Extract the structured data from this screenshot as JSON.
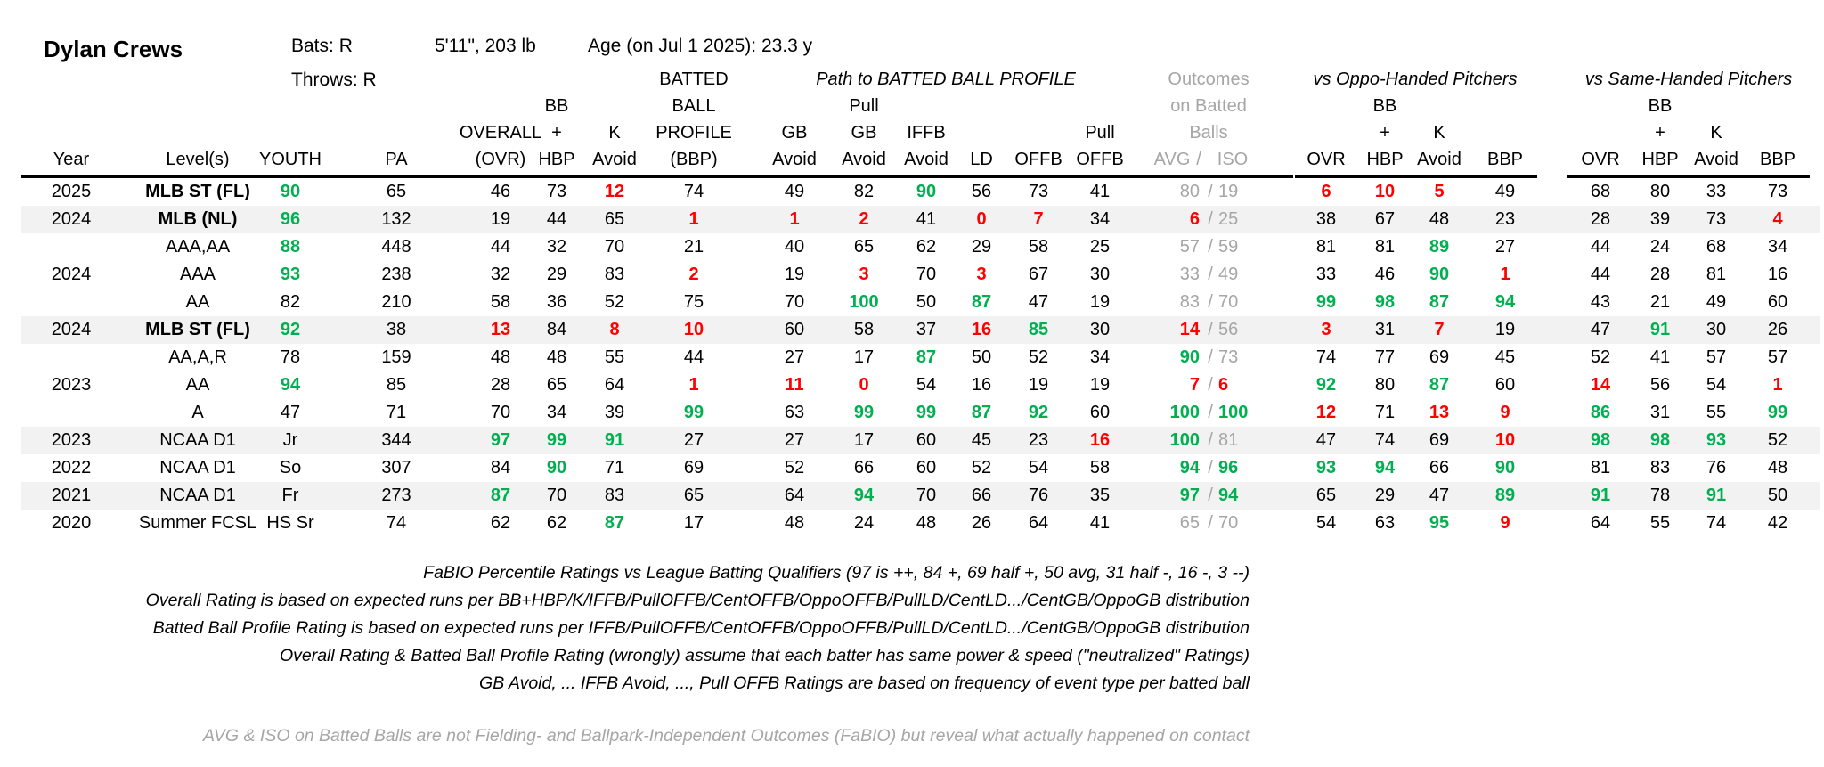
{
  "player": {
    "name": "Dylan Crews",
    "bats": "Bats: R",
    "throws": "Throws: R",
    "size": "5'11\", 203 lb",
    "age": "Age (on Jul 1 2025): 23.3 y"
  },
  "colors": {
    "good": "#00b050",
    "bad": "#ff0000",
    "muted": "#a6a6a6",
    "shade": "#f2f2f2"
  },
  "header": {
    "group_path": "Path to BATTED BALL PROFILE",
    "group_oppo": "vs Oppo-Handed Pitchers",
    "group_same": "vs Same-Handed Pitchers",
    "outcomes_line1": "Outcomes",
    "outcomes_line2": "on Batted",
    "outcomes_line3": "Balls",
    "outcomes_avg": "AVG",
    "outcomes_sep": "/",
    "outcomes_iso": "ISO",
    "year": "Year",
    "levels": "Level(s)",
    "youth": "YOUTH",
    "pa": "PA",
    "overall_1": "OVERALL",
    "overall_2": "(OVR)",
    "bb_1": "BB",
    "bb_2": "+",
    "bb_3": "HBP",
    "k_1": "K",
    "k_2": "Avoid",
    "bbp_1": "BATTED",
    "bbp_2": "BALL",
    "bbp_3": "PROFILE",
    "bbp_4": "(BBP)",
    "gb_1": "GB",
    "gb_2": "Avoid",
    "pgb_1": "Pull",
    "pgb_2": "GB",
    "pgb_3": "Avoid",
    "iffb_1": "IFFB",
    "iffb_2": "Avoid",
    "ld": "LD",
    "offb": "OFFB",
    "poffb_1": "Pull",
    "poffb_2": "OFFB",
    "ovr": "OVR",
    "hbp": "HBP",
    "plus": "+",
    "bb": "BB",
    "k": "K",
    "avoid": "Avoid",
    "bbp": "BBP"
  },
  "rows": [
    {
      "shade": false,
      "year": "2025",
      "level": "MLB ST (FL)",
      "level_bold": true,
      "cells": [
        [
          "90",
          "g"
        ],
        [
          "65",
          ""
        ],
        [
          "46",
          ""
        ],
        [
          "73",
          ""
        ],
        [
          "12",
          "r"
        ],
        [
          "74",
          ""
        ],
        [
          "49",
          ""
        ],
        [
          "82",
          ""
        ],
        [
          "90",
          "g"
        ],
        [
          "56",
          ""
        ],
        [
          "73",
          ""
        ],
        [
          "41",
          ""
        ]
      ],
      "avg": [
        "80",
        "gr"
      ],
      "iso": [
        "19",
        "gr"
      ],
      "oppo": [
        [
          "6",
          "r"
        ],
        [
          "10",
          "r"
        ],
        [
          "5",
          "r"
        ],
        [
          "49",
          ""
        ]
      ],
      "same": [
        [
          "68",
          ""
        ],
        [
          "80",
          ""
        ],
        [
          "33",
          ""
        ],
        [
          "73",
          ""
        ]
      ]
    },
    {
      "shade": true,
      "year": "2024",
      "level": "MLB (NL)",
      "level_bold": true,
      "cells": [
        [
          "96",
          "g"
        ],
        [
          "132",
          ""
        ],
        [
          "19",
          ""
        ],
        [
          "44",
          ""
        ],
        [
          "65",
          ""
        ],
        [
          "1",
          "r"
        ],
        [
          "1",
          "r"
        ],
        [
          "2",
          "r"
        ],
        [
          "41",
          ""
        ],
        [
          "0",
          "r"
        ],
        [
          "7",
          "r"
        ],
        [
          "34",
          ""
        ]
      ],
      "avg": [
        "6",
        "r"
      ],
      "iso": [
        "25",
        "gr"
      ],
      "oppo": [
        [
          "38",
          ""
        ],
        [
          "67",
          ""
        ],
        [
          "48",
          ""
        ],
        [
          "23",
          ""
        ]
      ],
      "same": [
        [
          "28",
          ""
        ],
        [
          "39",
          ""
        ],
        [
          "73",
          ""
        ],
        [
          "4",
          "r"
        ]
      ]
    },
    {
      "shade": false,
      "year": "",
      "level": "AAA,AA",
      "level_bold": false,
      "cells": [
        [
          "88",
          "g"
        ],
        [
          "448",
          ""
        ],
        [
          "44",
          ""
        ],
        [
          "32",
          ""
        ],
        [
          "70",
          ""
        ],
        [
          "21",
          ""
        ],
        [
          "40",
          ""
        ],
        [
          "65",
          ""
        ],
        [
          "62",
          ""
        ],
        [
          "29",
          ""
        ],
        [
          "58",
          ""
        ],
        [
          "25",
          ""
        ]
      ],
      "avg": [
        "57",
        "gr"
      ],
      "iso": [
        "59",
        "gr"
      ],
      "oppo": [
        [
          "81",
          ""
        ],
        [
          "81",
          ""
        ],
        [
          "89",
          "g"
        ],
        [
          "27",
          ""
        ]
      ],
      "same": [
        [
          "44",
          ""
        ],
        [
          "24",
          ""
        ],
        [
          "68",
          ""
        ],
        [
          "34",
          ""
        ]
      ]
    },
    {
      "shade": false,
      "year": "2024",
      "level": "AAA",
      "level_bold": false,
      "cells": [
        [
          "93",
          "g"
        ],
        [
          "238",
          ""
        ],
        [
          "32",
          ""
        ],
        [
          "29",
          ""
        ],
        [
          "83",
          ""
        ],
        [
          "2",
          "r"
        ],
        [
          "19",
          ""
        ],
        [
          "3",
          "r"
        ],
        [
          "70",
          ""
        ],
        [
          "3",
          "r"
        ],
        [
          "67",
          ""
        ],
        [
          "30",
          ""
        ]
      ],
      "avg": [
        "33",
        "gr"
      ],
      "iso": [
        "49",
        "gr"
      ],
      "oppo": [
        [
          "33",
          ""
        ],
        [
          "46",
          ""
        ],
        [
          "90",
          "g"
        ],
        [
          "1",
          "r"
        ]
      ],
      "same": [
        [
          "44",
          ""
        ],
        [
          "28",
          ""
        ],
        [
          "81",
          ""
        ],
        [
          "16",
          ""
        ]
      ]
    },
    {
      "shade": false,
      "year": "",
      "level": "AA",
      "level_bold": false,
      "cells": [
        [
          "82",
          ""
        ],
        [
          "210",
          ""
        ],
        [
          "58",
          ""
        ],
        [
          "36",
          ""
        ],
        [
          "52",
          ""
        ],
        [
          "75",
          ""
        ],
        [
          "70",
          ""
        ],
        [
          "100",
          "g"
        ],
        [
          "50",
          ""
        ],
        [
          "87",
          "g"
        ],
        [
          "47",
          ""
        ],
        [
          "19",
          ""
        ]
      ],
      "avg": [
        "83",
        "gr"
      ],
      "iso": [
        "70",
        "gr"
      ],
      "oppo": [
        [
          "99",
          "g"
        ],
        [
          "98",
          "g"
        ],
        [
          "87",
          "g"
        ],
        [
          "94",
          "g"
        ]
      ],
      "same": [
        [
          "43",
          ""
        ],
        [
          "21",
          ""
        ],
        [
          "49",
          ""
        ],
        [
          "60",
          ""
        ]
      ]
    },
    {
      "shade": true,
      "year": "2024",
      "level": "MLB ST (FL)",
      "level_bold": true,
      "cells": [
        [
          "92",
          "g"
        ],
        [
          "38",
          ""
        ],
        [
          "13",
          "r"
        ],
        [
          "84",
          ""
        ],
        [
          "8",
          "r"
        ],
        [
          "10",
          "r"
        ],
        [
          "60",
          ""
        ],
        [
          "58",
          ""
        ],
        [
          "37",
          ""
        ],
        [
          "16",
          "r"
        ],
        [
          "85",
          "g"
        ],
        [
          "30",
          ""
        ]
      ],
      "avg": [
        "14",
        "r"
      ],
      "iso": [
        "56",
        "gr"
      ],
      "oppo": [
        [
          "3",
          "r"
        ],
        [
          "31",
          ""
        ],
        [
          "7",
          "r"
        ],
        [
          "19",
          ""
        ]
      ],
      "same": [
        [
          "47",
          ""
        ],
        [
          "91",
          "g"
        ],
        [
          "30",
          ""
        ],
        [
          "26",
          ""
        ]
      ]
    },
    {
      "shade": false,
      "year": "",
      "level": "AA,A,R",
      "level_bold": false,
      "cells": [
        [
          "78",
          ""
        ],
        [
          "159",
          ""
        ],
        [
          "48",
          ""
        ],
        [
          "48",
          ""
        ],
        [
          "55",
          ""
        ],
        [
          "44",
          ""
        ],
        [
          "27",
          ""
        ],
        [
          "17",
          ""
        ],
        [
          "87",
          "g"
        ],
        [
          "50",
          ""
        ],
        [
          "52",
          ""
        ],
        [
          "34",
          ""
        ]
      ],
      "avg": [
        "90",
        "g"
      ],
      "iso": [
        "73",
        "gr"
      ],
      "oppo": [
        [
          "74",
          ""
        ],
        [
          "77",
          ""
        ],
        [
          "69",
          ""
        ],
        [
          "45",
          ""
        ]
      ],
      "same": [
        [
          "52",
          ""
        ],
        [
          "41",
          ""
        ],
        [
          "57",
          ""
        ],
        [
          "57",
          ""
        ]
      ]
    },
    {
      "shade": false,
      "year": "2023",
      "level": "AA",
      "level_bold": false,
      "cells": [
        [
          "94",
          "g"
        ],
        [
          "85",
          ""
        ],
        [
          "28",
          ""
        ],
        [
          "65",
          ""
        ],
        [
          "64",
          ""
        ],
        [
          "1",
          "r"
        ],
        [
          "11",
          "r"
        ],
        [
          "0",
          "r"
        ],
        [
          "54",
          ""
        ],
        [
          "16",
          ""
        ],
        [
          "19",
          ""
        ],
        [
          "19",
          ""
        ]
      ],
      "avg": [
        "7",
        "r"
      ],
      "iso": [
        "6",
        "r"
      ],
      "oppo": [
        [
          "92",
          "g"
        ],
        [
          "80",
          ""
        ],
        [
          "87",
          "g"
        ],
        [
          "60",
          ""
        ]
      ],
      "same": [
        [
          "14",
          "r"
        ],
        [
          "56",
          ""
        ],
        [
          "54",
          ""
        ],
        [
          "1",
          "r"
        ]
      ]
    },
    {
      "shade": false,
      "year": "",
      "level": "A",
      "level_bold": false,
      "cells": [
        [
          "47",
          ""
        ],
        [
          "71",
          ""
        ],
        [
          "70",
          ""
        ],
        [
          "34",
          ""
        ],
        [
          "39",
          ""
        ],
        [
          "99",
          "g"
        ],
        [
          "63",
          ""
        ],
        [
          "99",
          "g"
        ],
        [
          "99",
          "g"
        ],
        [
          "87",
          "g"
        ],
        [
          "92",
          "g"
        ],
        [
          "60",
          ""
        ]
      ],
      "avg": [
        "100",
        "g"
      ],
      "iso": [
        "100",
        "g"
      ],
      "oppo": [
        [
          "12",
          "r"
        ],
        [
          "71",
          ""
        ],
        [
          "13",
          "r"
        ],
        [
          "9",
          "r"
        ]
      ],
      "same": [
        [
          "86",
          "g"
        ],
        [
          "31",
          ""
        ],
        [
          "55",
          ""
        ],
        [
          "99",
          "g"
        ]
      ]
    },
    {
      "shade": true,
      "year": "2023",
      "level": "NCAA D1",
      "level_bold": false,
      "cells": [
        [
          "Jr",
          ""
        ],
        [
          "344",
          ""
        ],
        [
          "97",
          "g"
        ],
        [
          "99",
          "g"
        ],
        [
          "91",
          "g"
        ],
        [
          "27",
          ""
        ],
        [
          "27",
          ""
        ],
        [
          "17",
          ""
        ],
        [
          "60",
          ""
        ],
        [
          "45",
          ""
        ],
        [
          "23",
          ""
        ],
        [
          "16",
          "r"
        ]
      ],
      "avg": [
        "100",
        "g"
      ],
      "iso": [
        "81",
        "gr"
      ],
      "oppo": [
        [
          "47",
          ""
        ],
        [
          "74",
          ""
        ],
        [
          "69",
          ""
        ],
        [
          "10",
          "r"
        ]
      ],
      "same": [
        [
          "98",
          "g"
        ],
        [
          "98",
          "g"
        ],
        [
          "93",
          "g"
        ],
        [
          "52",
          ""
        ]
      ]
    },
    {
      "shade": false,
      "year": "2022",
      "level": "NCAA D1",
      "level_bold": false,
      "cells": [
        [
          "So",
          ""
        ],
        [
          "307",
          ""
        ],
        [
          "84",
          ""
        ],
        [
          "90",
          "g"
        ],
        [
          "71",
          ""
        ],
        [
          "69",
          ""
        ],
        [
          "52",
          ""
        ],
        [
          "66",
          ""
        ],
        [
          "60",
          ""
        ],
        [
          "52",
          ""
        ],
        [
          "54",
          ""
        ],
        [
          "58",
          ""
        ]
      ],
      "avg": [
        "94",
        "g"
      ],
      "iso": [
        "96",
        "g"
      ],
      "oppo": [
        [
          "93",
          "g"
        ],
        [
          "94",
          "g"
        ],
        [
          "66",
          ""
        ],
        [
          "90",
          "g"
        ]
      ],
      "same": [
        [
          "81",
          ""
        ],
        [
          "83",
          ""
        ],
        [
          "76",
          ""
        ],
        [
          "48",
          ""
        ]
      ]
    },
    {
      "shade": true,
      "year": "2021",
      "level": "NCAA D1",
      "level_bold": false,
      "cells": [
        [
          "Fr",
          ""
        ],
        [
          "273",
          ""
        ],
        [
          "87",
          "g"
        ],
        [
          "70",
          ""
        ],
        [
          "83",
          ""
        ],
        [
          "65",
          ""
        ],
        [
          "64",
          ""
        ],
        [
          "94",
          "g"
        ],
        [
          "70",
          ""
        ],
        [
          "66",
          ""
        ],
        [
          "76",
          ""
        ],
        [
          "35",
          ""
        ]
      ],
      "avg": [
        "97",
        "g"
      ],
      "iso": [
        "94",
        "g"
      ],
      "oppo": [
        [
          "65",
          ""
        ],
        [
          "29",
          ""
        ],
        [
          "47",
          ""
        ],
        [
          "89",
          "g"
        ]
      ],
      "same": [
        [
          "91",
          "g"
        ],
        [
          "78",
          ""
        ],
        [
          "91",
          "g"
        ],
        [
          "50",
          ""
        ]
      ]
    },
    {
      "shade": false,
      "year": "2020",
      "level": "Summer FCSL",
      "level_bold": false,
      "cells": [
        [
          "HS Sr",
          ""
        ],
        [
          "74",
          ""
        ],
        [
          "62",
          ""
        ],
        [
          "62",
          ""
        ],
        [
          "87",
          "g"
        ],
        [
          "17",
          ""
        ],
        [
          "48",
          ""
        ],
        [
          "24",
          ""
        ],
        [
          "48",
          ""
        ],
        [
          "26",
          ""
        ],
        [
          "64",
          ""
        ],
        [
          "41",
          ""
        ]
      ],
      "avg": [
        "65",
        "gr"
      ],
      "iso": [
        "70",
        "gr"
      ],
      "oppo": [
        [
          "54",
          ""
        ],
        [
          "63",
          ""
        ],
        [
          "95",
          "g"
        ],
        [
          "9",
          "r"
        ]
      ],
      "same": [
        [
          "64",
          ""
        ],
        [
          "55",
          ""
        ],
        [
          "74",
          ""
        ],
        [
          "42",
          ""
        ]
      ]
    }
  ],
  "notes": [
    "FaBIO Percentile Ratings vs League Batting Qualifiers (97 is ++, 84 +, 69 half +, 50 avg, 31 half -, 16 -, 3 --)",
    "Overall Rating is based on expected runs per BB+HBP/K/IFFB/PullOFFB/CentOFFB/OppoOFFB/PullLD/CentLD.../CentGB/OppoGB distribution",
    "Batted Ball Profile Rating is based on expected runs per IFFB/PullOFFB/CentOFFB/OppoOFFB/PullLD/CentLD.../CentGB/OppoGB distribution",
    "Overall Rating & Batted Ball Profile Rating (wrongly) assume that each batter has same power & speed (\"neutralized\" Ratings)",
    "GB Avoid, ... IFFB Avoid, ..., Pull OFFB Ratings are based on frequency of event type per batted ball"
  ],
  "disclaimer": "AVG & ISO on Batted Balls are not Fielding- and Ballpark-Independent Outcomes (FaBIO) but reveal what actually happened on contact"
}
